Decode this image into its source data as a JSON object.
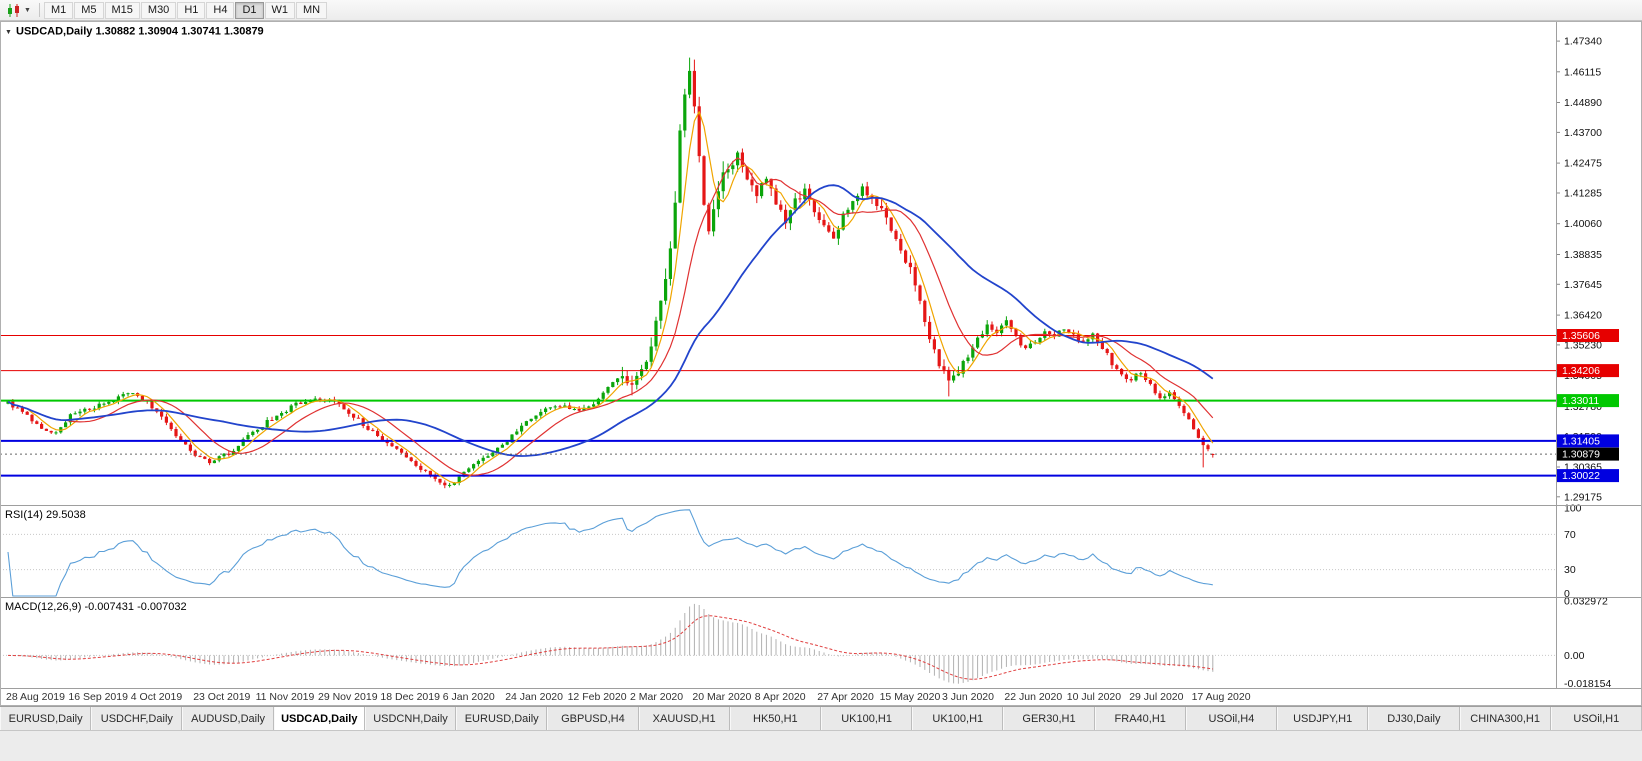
{
  "toolbar": {
    "timeframes": [
      "M1",
      "M5",
      "M15",
      "M30",
      "H1",
      "H4",
      "D1",
      "W1",
      "MN"
    ],
    "active_timeframe": "D1"
  },
  "tabs": {
    "items": [
      "EURUSD,Daily",
      "USDCHF,Daily",
      "AUDUSD,Daily",
      "USDCAD,Daily",
      "USDCNH,Daily",
      "EURUSD,Daily",
      "GBPUSD,H4",
      "XAUUSD,H1",
      "HK50,H1",
      "UK100,H1",
      "UK100,H1",
      "GER30,H1",
      "FRA40,H1",
      "USOil,H4",
      "USDJPY,H1",
      "DJ30,Daily",
      "CHINA300,H1",
      "USOil,H1"
    ],
    "active_index": 3
  },
  "chart_data": {
    "type": "candlestick",
    "symbol": "USDCAD",
    "timeframe": "Daily",
    "title": "USDCAD,Daily 1.30882 1.30904 1.30741 1.30879",
    "ohlc_display": {
      "open": "1.30882",
      "high": "1.30904",
      "low": "1.30741",
      "close": "1.30879"
    },
    "price_axis_ticks": [
      "1.47340",
      "1.46115",
      "1.44890",
      "1.43700",
      "1.42475",
      "1.41285",
      "1.40060",
      "1.38835",
      "1.37645",
      "1.36420",
      "1.35230",
      "1.34005",
      "1.32780",
      "1.31590",
      "1.30365",
      "1.29175"
    ],
    "y_domain": [
      1.2885,
      1.481
    ],
    "bar_count": 252,
    "bars_per_date_label": 13,
    "date_labels": [
      "28 Aug 2019",
      "16 Sep 2019",
      "4 Oct 2019",
      "23 Oct 2019",
      "11 Nov 2019",
      "29 Nov 2019",
      "18 Dec 2019",
      "6 Jan 2020",
      "24 Jan 2020",
      "12 Feb 2020",
      "2 Mar 2020",
      "20 Mar 2020",
      "8 Apr 2020",
      "27 Apr 2020",
      "15 May 2020",
      "3 Jun 2020",
      "22 Jun 2020",
      "10 Jul 2020",
      "29 Jul 2020",
      "17 Aug 2020"
    ],
    "price_anchors": [
      [
        0,
        1.329
      ],
      [
        3,
        1.3262
      ],
      [
        7,
        1.3185
      ],
      [
        10,
        1.3168
      ],
      [
        13,
        1.324
      ],
      [
        17,
        1.3268
      ],
      [
        21,
        1.3295
      ],
      [
        25,
        1.333
      ],
      [
        28,
        1.331
      ],
      [
        31,
        1.3255
      ],
      [
        35,
        1.3165
      ],
      [
        39,
        1.3085
      ],
      [
        42,
        1.306
      ],
      [
        46,
        1.309
      ],
      [
        50,
        1.316
      ],
      [
        55,
        1.323
      ],
      [
        60,
        1.3285
      ],
      [
        64,
        1.331
      ],
      [
        68,
        1.3295
      ],
      [
        72,
        1.324
      ],
      [
        76,
        1.3175
      ],
      [
        80,
        1.312
      ],
      [
        84,
        1.306
      ],
      [
        88,
        1.3
      ],
      [
        91,
        1.2965
      ],
      [
        93,
        1.298
      ],
      [
        96,
        1.303
      ],
      [
        100,
        1.3085
      ],
      [
        104,
        1.314
      ],
      [
        108,
        1.322
      ],
      [
        112,
        1.3265
      ],
      [
        116,
        1.3285
      ],
      [
        119,
        1.3255
      ],
      [
        122,
        1.329
      ],
      [
        125,
        1.336
      ],
      [
        128,
        1.34
      ],
      [
        130,
        1.338
      ],
      [
        132,
        1.342
      ],
      [
        134,
        1.353
      ],
      [
        136,
        1.37
      ],
      [
        138,
        1.392
      ],
      [
        139,
        1.41
      ],
      [
        140,
        1.435
      ],
      [
        141,
        1.45
      ],
      [
        142,
        1.464
      ],
      [
        143,
        1.448
      ],
      [
        144,
        1.425
      ],
      [
        145,
        1.408
      ],
      [
        146,
        1.399
      ],
      [
        147,
        1.406
      ],
      [
        148,
        1.415
      ],
      [
        150,
        1.423
      ],
      [
        152,
        1.428
      ],
      [
        154,
        1.419
      ],
      [
        156,
        1.412
      ],
      [
        158,
        1.418
      ],
      [
        160,
        1.408
      ],
      [
        162,
        1.402
      ],
      [
        164,
        1.409
      ],
      [
        166,
        1.415
      ],
      [
        168,
        1.406
      ],
      [
        170,
        1.4
      ],
      [
        172,
        1.395
      ],
      [
        174,
        1.403
      ],
      [
        176,
        1.411
      ],
      [
        178,
        1.416
      ],
      [
        180,
        1.41
      ],
      [
        182,
        1.405
      ],
      [
        184,
        1.398
      ],
      [
        186,
        1.39
      ],
      [
        188,
        1.382
      ],
      [
        190,
        1.37
      ],
      [
        192,
        1.356
      ],
      [
        194,
        1.344
      ],
      [
        196,
        1.337
      ],
      [
        198,
        1.341
      ],
      [
        200,
        1.348
      ],
      [
        202,
        1.355
      ],
      [
        204,
        1.36
      ],
      [
        206,
        1.357
      ],
      [
        208,
        1.362
      ],
      [
        210,
        1.356
      ],
      [
        212,
        1.35
      ],
      [
        214,
        1.354
      ],
      [
        216,
        1.358
      ],
      [
        218,
        1.355
      ],
      [
        220,
        1.359
      ],
      [
        222,
        1.356
      ],
      [
        224,
        1.353
      ],
      [
        226,
        1.357
      ],
      [
        228,
        1.351
      ],
      [
        230,
        1.345
      ],
      [
        232,
        1.34
      ],
      [
        234,
        1.338
      ],
      [
        236,
        1.342
      ],
      [
        238,
        1.336
      ],
      [
        240,
        1.331
      ],
      [
        242,
        1.334
      ],
      [
        244,
        1.328
      ],
      [
        246,
        1.322
      ],
      [
        247,
        1.318
      ],
      [
        248,
        1.315
      ],
      [
        249,
        1.312
      ],
      [
        250,
        1.31
      ],
      [
        251,
        1.30879
      ]
    ],
    "key_extremes": {
      "peak_bar": 142,
      "peak_high": 1.4668,
      "jan_low_bar": 91,
      "jan_low": 1.2952,
      "jun_low_bar": 196,
      "jun_low": 1.3318,
      "aug_low_bar": 249,
      "aug_low": 1.3035
    },
    "last_bar": {
      "open": 1.30882,
      "high": 1.30904,
      "low": 1.30741,
      "close": 1.30879
    },
    "horizontal_lines": [
      {
        "price": 1.35606,
        "label": "1.35606",
        "color": "#e60000",
        "width": 1
      },
      {
        "price": 1.34206,
        "label": "1.34206",
        "color": "#e60000",
        "width": 1
      },
      {
        "price": 1.33011,
        "label": "1.33011",
        "color": "#00c800",
        "width": 2
      },
      {
        "price": 1.31405,
        "label": "1.31405",
        "color": "#0000e0",
        "width": 2
      },
      {
        "price": 1.30022,
        "label": "1.30022",
        "color": "#0000e0",
        "width": 2
      }
    ],
    "current_price": {
      "price": 1.30879,
      "label": "1.30879",
      "box_color": "#000000"
    },
    "candle_colors": {
      "bull": "#0ba50b",
      "bear": "#e51616"
    },
    "moving_averages": [
      {
        "period": 5,
        "color": "#f0a500",
        "width": 1.2
      },
      {
        "period": 13,
        "color": "#e03232",
        "width": 1.2
      },
      {
        "period": 34,
        "color": "#2244cc",
        "width": 1.8
      }
    ],
    "rsi": {
      "title": "RSI(14) 29.5038",
      "period": 14,
      "last_value": 29.5038,
      "color": "#5b9fd8",
      "levels": [
        "100",
        "70",
        "30",
        "0"
      ],
      "level_values": [
        100,
        70,
        30,
        0
      ]
    },
    "macd": {
      "title": "MACD(12,26,9) -0.007431 -0.007032",
      "fast": 12,
      "slow": 26,
      "signal": 9,
      "last_values": [
        -0.007431,
        -0.007032
      ],
      "axis_labels": [
        "0.032972",
        "0.00",
        "-0.018154"
      ],
      "axis_values": [
        0.032972,
        0,
        -0.018154
      ],
      "domain": [
        -0.0185,
        0.0335
      ],
      "histogram_color": "#b0b0b0",
      "signal_color": "#e04040"
    }
  }
}
